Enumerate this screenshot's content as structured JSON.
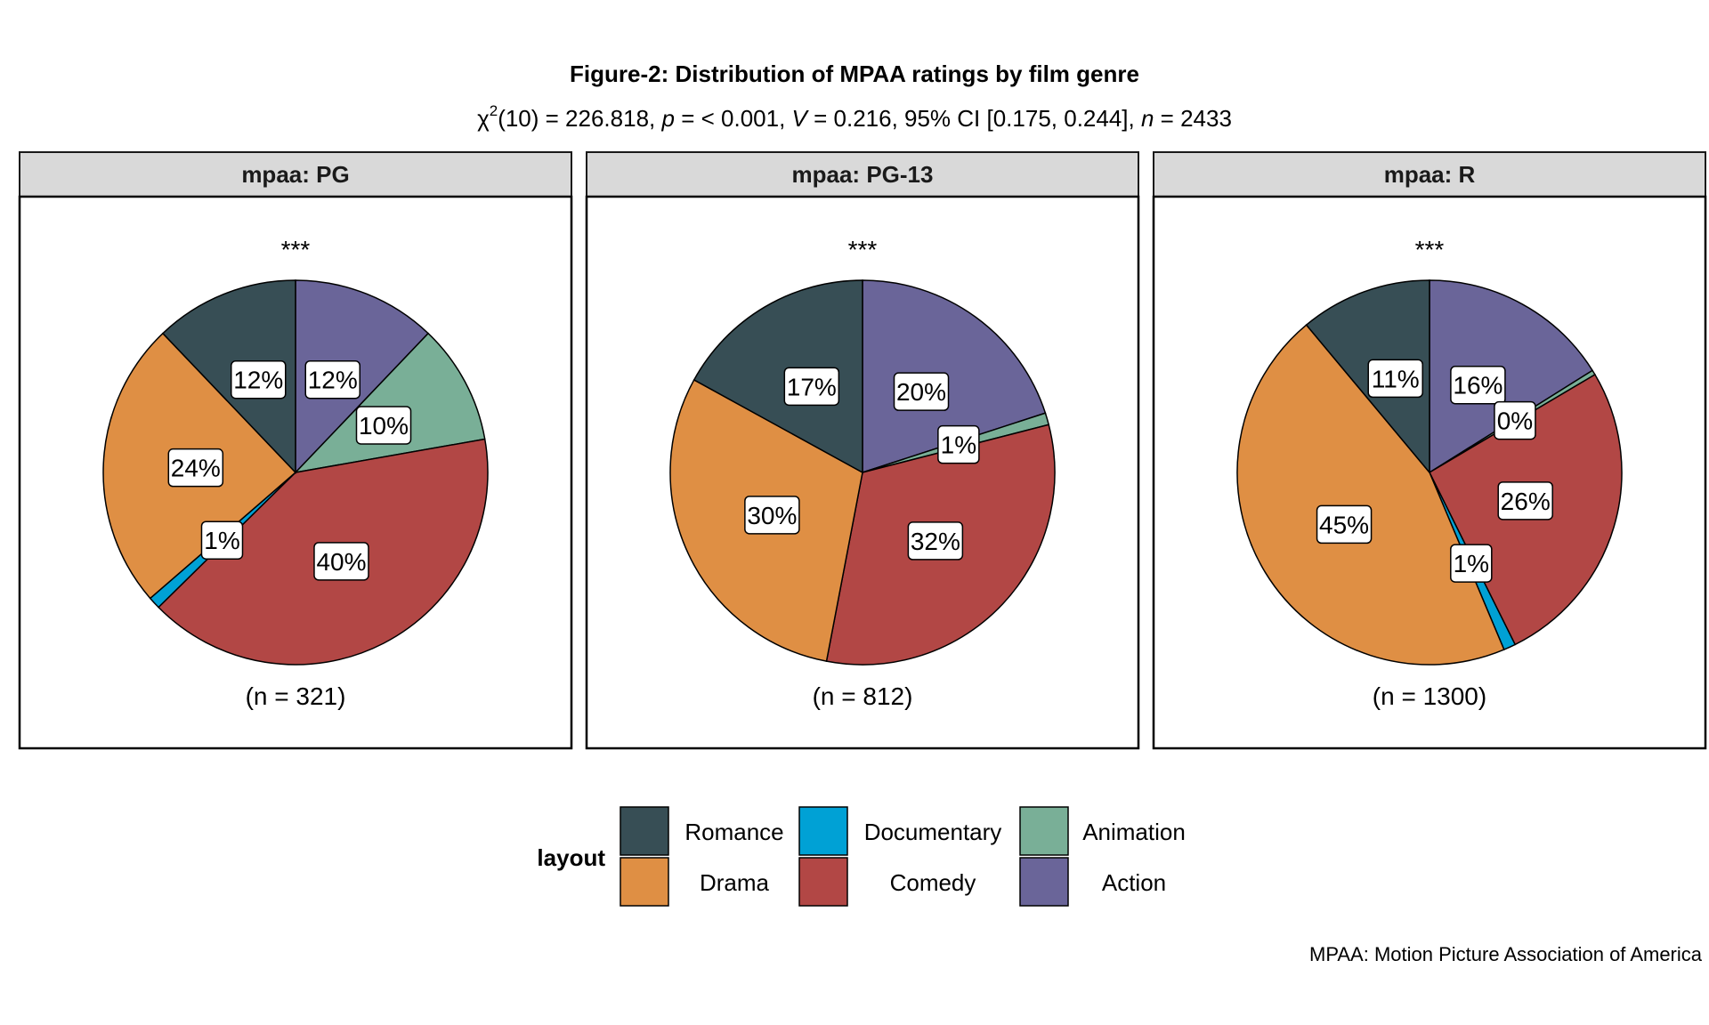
{
  "chart_data": {
    "type": "pie",
    "title": "Figure-2: Distribution of MPAA ratings by film genre",
    "subtitle": {
      "chi_symbol": "χ",
      "superscript": "2",
      "df_text": "(10) = 226.818, ",
      "p_label": "p",
      "p_text": " = < 0.001, ",
      "v_label": "V",
      "v_text": " = 0.216, 95% CI [0.175, 0.244], ",
      "n_label": "n",
      "n_text": " = 2433"
    },
    "legend": {
      "title": "layout",
      "position": "bottom",
      "entries": [
        {
          "name": "Romance",
          "color": "#374E55"
        },
        {
          "name": "Drama",
          "color": "#DF8F44"
        },
        {
          "name": "Documentary",
          "color": "#00A1D5"
        },
        {
          "name": "Comedy",
          "color": "#B24745"
        },
        {
          "name": "Animation",
          "color": "#79AF97"
        },
        {
          "name": "Action",
          "color": "#6A6599"
        }
      ]
    },
    "slice_order": [
      "Action",
      "Animation",
      "Comedy",
      "Documentary",
      "Drama",
      "Romance"
    ],
    "colors": {
      "Romance": "#374E55",
      "Drama": "#DF8F44",
      "Documentary": "#00A1D5",
      "Comedy": "#B24745",
      "Animation": "#79AF97",
      "Action": "#6A6599"
    },
    "panels": [
      {
        "strip": "mpaa: PG",
        "significance": "***",
        "n_label": "(n = 321)",
        "values": {
          "Action": 12,
          "Animation": 10,
          "Comedy": 40,
          "Documentary": 1,
          "Drama": 24,
          "Romance": 12
        },
        "labels": {
          "Action": "12%",
          "Animation": "10%",
          "Comedy": "40%",
          "Documentary": "1%",
          "Drama": "24%",
          "Romance": "12%"
        }
      },
      {
        "strip": "mpaa: PG-13",
        "significance": "***",
        "n_label": "(n = 812)",
        "values": {
          "Action": 20,
          "Animation": 1,
          "Comedy": 32,
          "Documentary": 0,
          "Drama": 30,
          "Romance": 17
        },
        "labels": {
          "Action": "20%",
          "Animation": "1%",
          "Comedy": "32%",
          "Drama": "30%",
          "Romance": "17%"
        }
      },
      {
        "strip": "mpaa: R",
        "significance": "***",
        "n_label": "(n = 1300)",
        "values": {
          "Action": 16,
          "Animation": 0.4,
          "Comedy": 26,
          "Documentary": 1,
          "Drama": 45,
          "Romance": 11
        },
        "labels": {
          "Action": "16%",
          "Animation": "0%",
          "Comedy": "26%",
          "Documentary": "1%",
          "Drama": "45%",
          "Romance": "11%"
        }
      }
    ]
  },
  "caption": "MPAA: Motion Picture Association of America"
}
